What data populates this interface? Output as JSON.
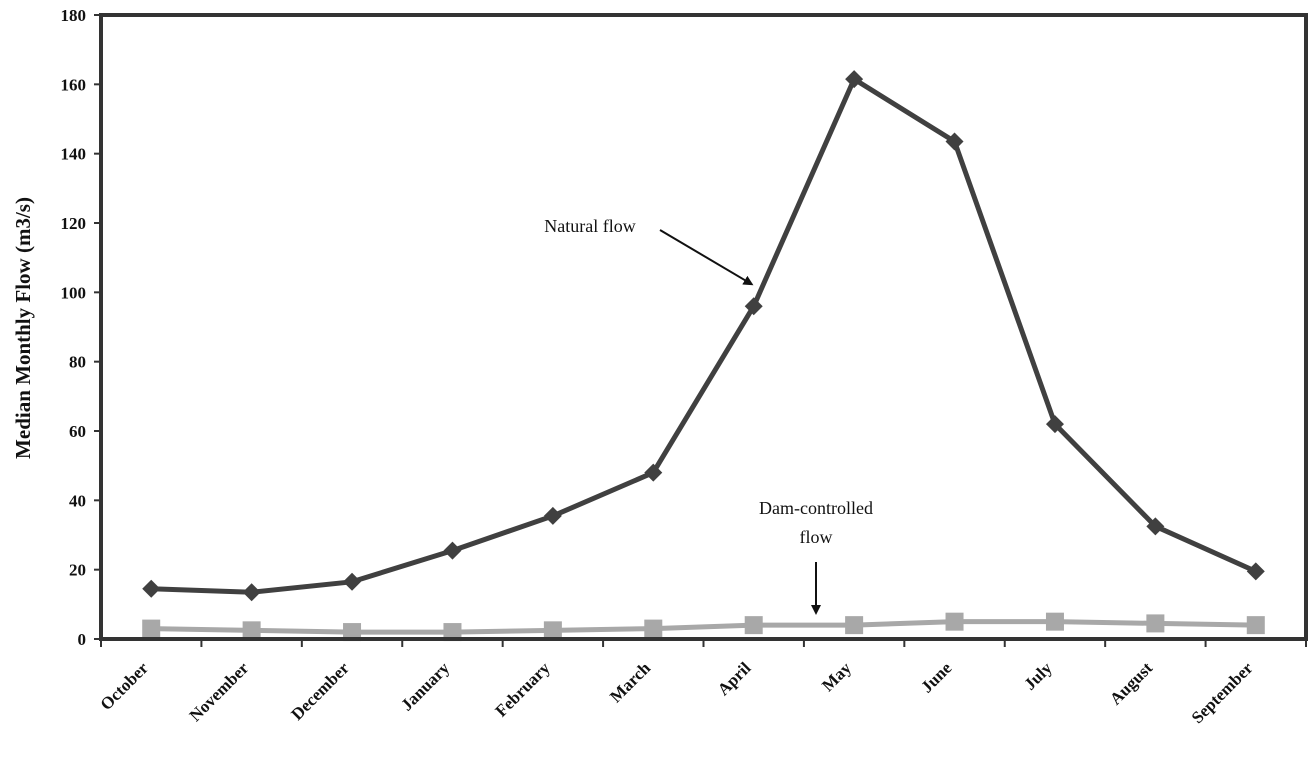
{
  "chart_data": {
    "type": "line",
    "title": "",
    "xlabel": "",
    "ylabel": "Median Monthly Flow (m3/s)",
    "ylim": [
      0,
      180
    ],
    "yticks": [
      0,
      20,
      40,
      60,
      80,
      100,
      120,
      140,
      160,
      180
    ],
    "grid": false,
    "legend": "none",
    "categories": [
      "October",
      "November",
      "December",
      "January",
      "February",
      "March",
      "April",
      "May",
      "June",
      "July",
      "August",
      "September"
    ],
    "series": [
      {
        "name": "Natural flow",
        "color": "#404040",
        "marker": "diamond",
        "values": [
          14.5,
          13.5,
          16.5,
          25.5,
          35.5,
          48,
          96,
          161.5,
          143.5,
          62,
          32.5,
          19.5
        ]
      },
      {
        "name": "Dam-controlled flow",
        "color": "#a8a8a8",
        "marker": "square",
        "values": [
          3,
          2.5,
          2,
          2,
          2.5,
          3,
          4,
          4,
          5,
          5,
          4.5,
          4
        ]
      }
    ],
    "annotations": [
      {
        "lines": [
          "Natural flow"
        ],
        "target_series": 0,
        "target_index": 6
      },
      {
        "lines": [
          "Dam-controlled",
          "flow"
        ],
        "target_series": 1,
        "target_index": 7
      }
    ]
  }
}
